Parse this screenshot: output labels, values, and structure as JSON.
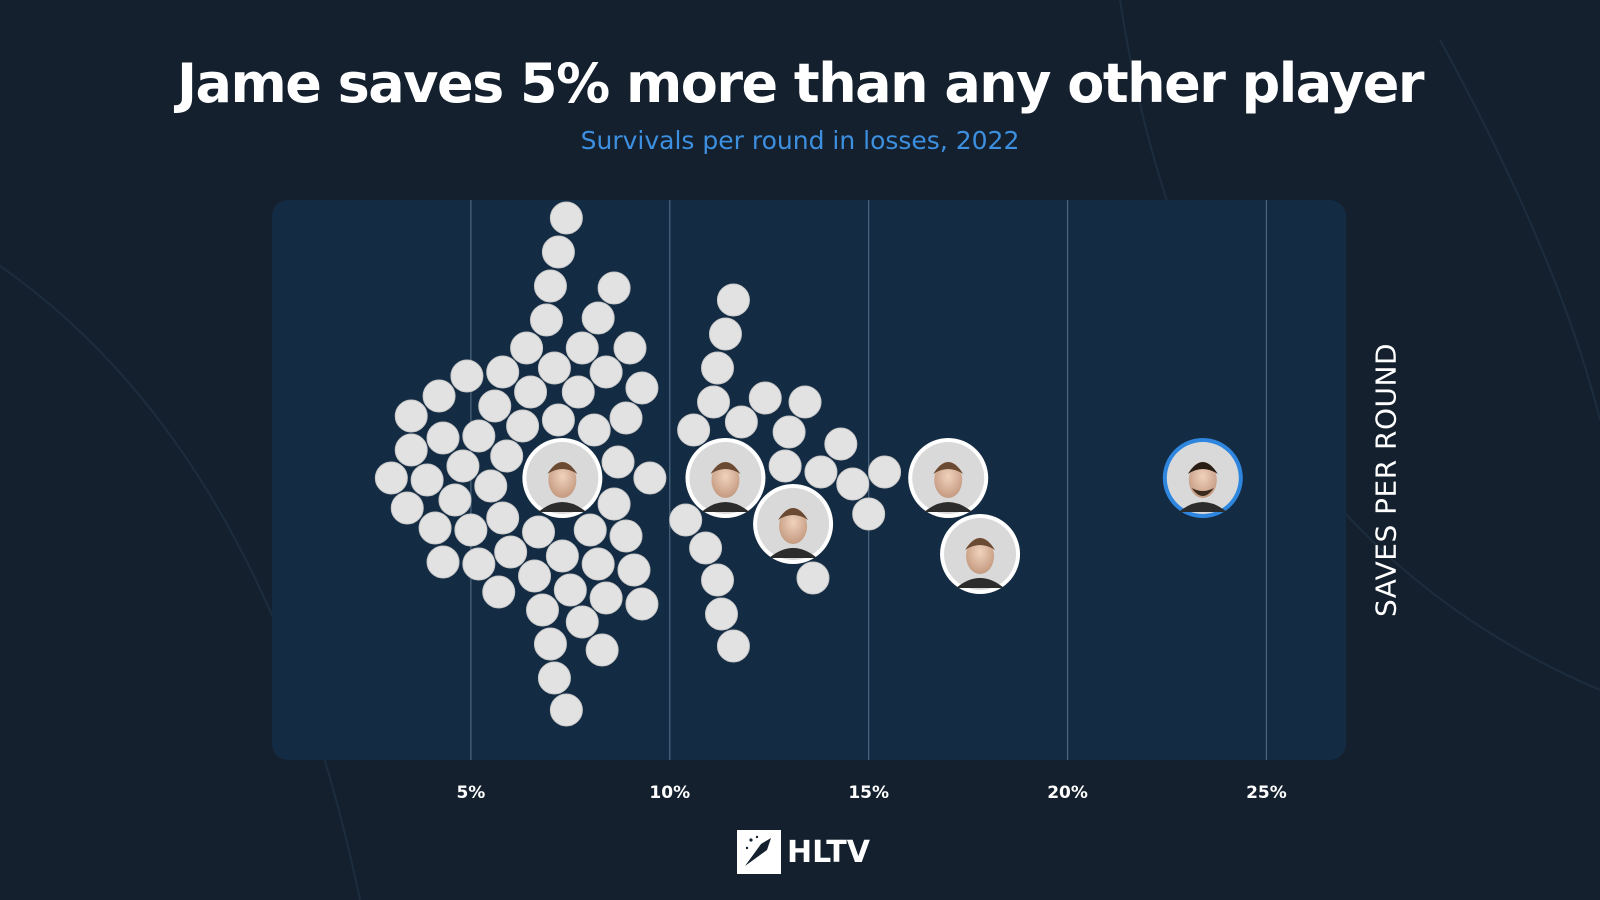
{
  "title": "Jame saves 5% more than any other player",
  "subtitle": "Survivals per round in losses, 2022",
  "brand": {
    "name": "HLTV"
  },
  "colors": {
    "background": "#14202e",
    "panel": "#132b43",
    "dot": "#e2e2e2",
    "subtitle": "#3d8fe0",
    "highlight_ring": "#2e86de"
  },
  "chart_data": {
    "type": "beeswarm",
    "xlim": [
      0,
      27
    ],
    "x_ticks": [
      5,
      10,
      15,
      20,
      25
    ],
    "x_tick_labels": [
      "5%",
      "10%",
      "15%",
      "20%",
      "25%"
    ],
    "ylabel": "SAVES PER ROUND",
    "grid": true,
    "players_highlighted": [
      {
        "value": 23.4,
        "icon": "player-avatar-icon",
        "highlight": true
      },
      {
        "value": 17.8,
        "icon": "player-avatar-icon"
      },
      {
        "value": 17.0,
        "icon": "player-avatar-icon"
      },
      {
        "value": 13.1,
        "icon": "player-avatar-icon"
      },
      {
        "value": 11.4,
        "icon": "player-avatar-icon"
      },
      {
        "value": 7.3,
        "icon": "player-avatar-icon"
      }
    ],
    "values": [
      3.0,
      3.5,
      3.4,
      3.5,
      4.1,
      3.9,
      4.3,
      4.2,
      4.3,
      4.6,
      4.8,
      4.9,
      5.0,
      5.2,
      5.2,
      5.5,
      5.6,
      5.8,
      5.7,
      5.8,
      5.9,
      6.0,
      6.3,
      6.4,
      6.6,
      6.7,
      6.5,
      6.8,
      7.0,
      7.1,
      6.9,
      7.0,
      7.1,
      7.2,
      7.2,
      7.4,
      7.5,
      7.3,
      7.4,
      7.8,
      7.8,
      7.7,
      8.0,
      8.1,
      8.2,
      8.3,
      8.2,
      8.4,
      8.4,
      8.6,
      8.6,
      8.7,
      8.9,
      8.9,
      9.0,
      9.1,
      9.3,
      9.3,
      9.5,
      10.4,
      10.6,
      10.9,
      11.1,
      11.2,
      11.3,
      11.2,
      11.4,
      11.6,
      11.6,
      11.8,
      12.4,
      12.9,
      13.0,
      13.4,
      13.6,
      13.8,
      14.3,
      14.6,
      15.0,
      15.4
    ]
  }
}
